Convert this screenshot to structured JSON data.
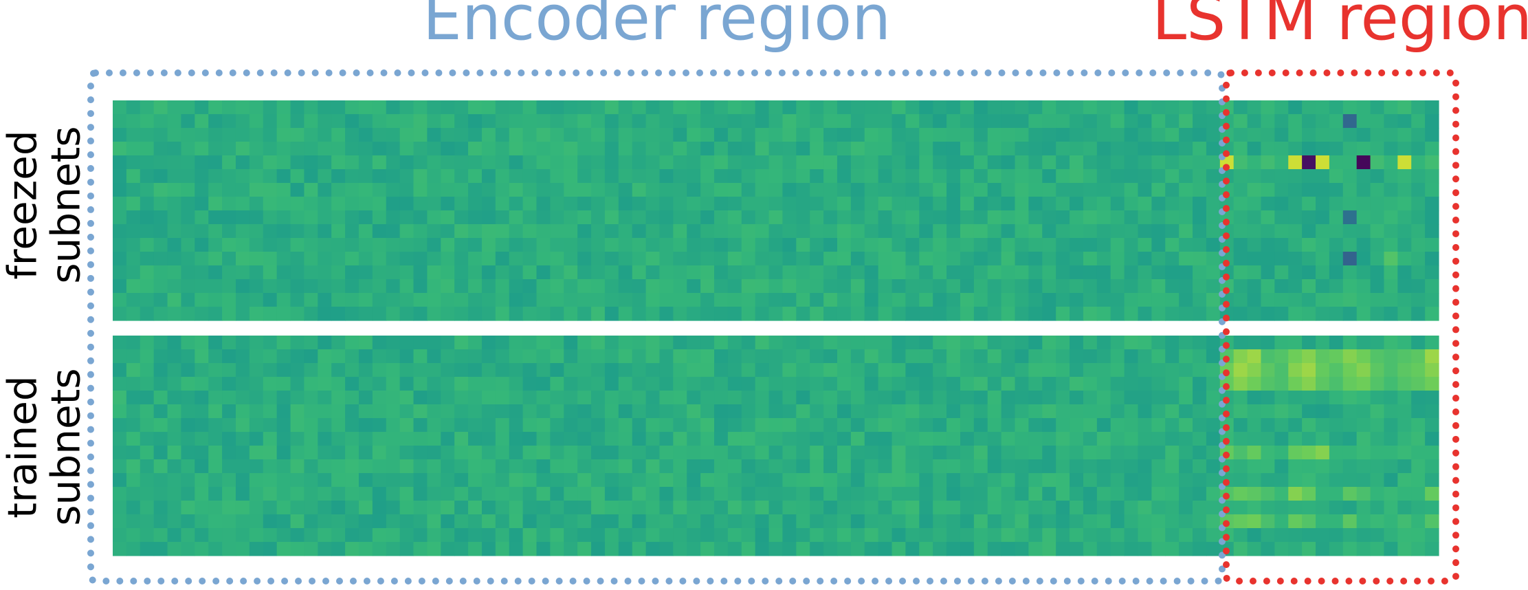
{
  "figure": {
    "regions": [
      {
        "id": "encoder",
        "label": "Encoder region",
        "color": "#7aa6d2"
      },
      {
        "id": "lstm",
        "label": "LSTM region",
        "color": "#e8332e"
      }
    ],
    "rows": [
      {
        "id": "freezed",
        "label_lines": [
          "freezed",
          "subnets"
        ]
      },
      {
        "id": "trained",
        "label_lines": [
          "trained",
          "subnets"
        ]
      }
    ]
  },
  "chart_data": {
    "type": "heatmap",
    "colormap": "viridis",
    "value_range": [
      0,
      1
    ],
    "panels": [
      {
        "name": "freezed subnets",
        "n_rows": 16,
        "n_cols": 97,
        "encoder_cols": 81,
        "lstm_cols": 16,
        "baseline": 0.7
      },
      {
        "name": "trained subnets",
        "n_rows": 16,
        "n_cols": 97,
        "encoder_cols": 81,
        "lstm_cols": 16,
        "baseline": 0.7
      }
    ],
    "lstm_highlights": [
      {
        "panel": 0,
        "row": 4,
        "values": [
          0.96,
          0.78,
          0.74,
          0.78,
          0.74,
          0.96,
          0.05,
          0.96,
          0.74,
          0.74,
          0.02,
          0.78,
          0.74,
          0.96,
          0.74,
          0.78
        ]
      },
      {
        "panel": 0,
        "row": 1,
        "col": 9,
        "value": 0.38
      },
      {
        "panel": 0,
        "row": 8,
        "col": 9,
        "value": 0.42
      },
      {
        "panel": 0,
        "row": 11,
        "col": 9,
        "value": 0.36
      },
      {
        "panel": 0,
        "row": 11,
        "col": 12,
        "value": 0.82
      },
      {
        "panel": 1,
        "row": 1,
        "values": [
          0.82,
          0.9,
          0.92,
          0.8,
          0.82,
          0.88,
          0.9,
          0.84,
          0.86,
          0.9,
          0.88,
          0.82,
          0.8,
          0.82,
          0.84,
          0.92
        ]
      },
      {
        "panel": 1,
        "row": 2,
        "values": [
          0.88,
          0.92,
          0.9,
          0.84,
          0.8,
          0.9,
          0.92,
          0.86,
          0.82,
          0.88,
          0.9,
          0.84,
          0.8,
          0.84,
          0.86,
          0.9
        ]
      },
      {
        "panel": 1,
        "row": 3,
        "values": [
          0.86,
          0.9,
          0.88,
          0.82,
          0.8,
          0.88,
          0.9,
          0.84,
          0.8,
          0.86,
          0.88,
          0.82,
          0.78,
          0.82,
          0.84,
          0.88
        ]
      },
      {
        "panel": 1,
        "row": 8,
        "values": [
          0.86,
          0.8,
          0.86,
          0.76,
          0.74,
          0.86,
          0.88,
          0.9,
          0.74,
          0.74,
          0.76,
          0.74,
          0.74,
          0.76,
          0.74,
          0.74
        ]
      },
      {
        "panel": 1,
        "row": 11,
        "values": [
          0.82,
          0.86,
          0.84,
          0.8,
          0.76,
          0.9,
          0.86,
          0.74,
          0.74,
          0.84,
          0.8,
          0.74,
          0.76,
          0.74,
          0.74,
          0.86
        ]
      },
      {
        "panel": 1,
        "row": 13,
        "values": [
          0.84,
          0.86,
          0.88,
          0.8,
          0.74,
          0.86,
          0.82,
          0.74,
          0.74,
          0.84,
          0.74,
          0.76,
          0.74,
          0.78,
          0.74,
          0.82
        ]
      }
    ]
  }
}
